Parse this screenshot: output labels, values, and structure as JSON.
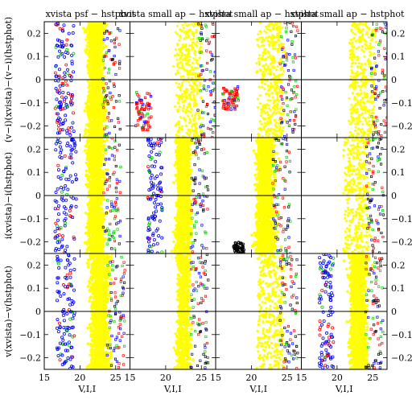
{
  "chart_data": {
    "type": "scatter",
    "layout": {
      "rows": 3,
      "cols": 4
    },
    "xlim": [
      15,
      27
    ],
    "ylim": [
      -0.25,
      0.25
    ],
    "x_ticks": [
      15,
      20,
      25
    ],
    "y_ticks": [
      -0.2,
      -0.1,
      0,
      0.1,
      0.2
    ],
    "y_tick_labels": [
      "−0.2",
      "−0.1",
      "0",
      "0.1",
      "0.2"
    ],
    "xlabel": "V,I,I",
    "row_ylabels": [
      "(v−i)(xvista)−(v−i)(hstphot)",
      "i(xvista)−i(hstphot)",
      "v(xvista)−v(hstphot)"
    ],
    "column_titles": [
      "xvista psf − hstphot",
      "xvista small ap − hstphot",
      "xvista small ap − hstphot",
      "xvista small ap − hstphot"
    ],
    "right_tick_labels_visible": [
      "0.2",
      "0.1",
      "0",
      "−0.1"
    ],
    "zero_line": 0,
    "series_colors": {
      "main": "#ffff00",
      "blue": "#0000ff",
      "red": "#ff0000",
      "green": "#00cc00",
      "black": "#000000"
    },
    "panels": [
      {
        "row": 0,
        "col": 0,
        "ridge": 22.2,
        "width": 1.6,
        "blue": [
          16.5,
          19.2
        ],
        "red": [
          16.5,
          18.5
        ]
      },
      {
        "row": 0,
        "col": 1,
        "ridge": 23.5,
        "width": 1.2,
        "sparse": true,
        "redClump": [
          15.8,
          18.0,
          -0.22,
          -0.05
        ]
      },
      {
        "row": 0,
        "col": 2,
        "ridge": 23.0,
        "width": 1.2,
        "sparse": true,
        "redClump": [
          16.0,
          18.2,
          -0.13,
          -0.03
        ]
      },
      {
        "row": 0,
        "col": 3,
        "ridge": 23.8,
        "width": 1.0,
        "sparse": true
      },
      {
        "row": 1,
        "col": 0,
        "ridge": 22.2,
        "width": 1.6,
        "blue": [
          16.5,
          19.5
        ]
      },
      {
        "row": 1,
        "col": 1,
        "ridge": 22.5,
        "width": 1.4,
        "blue": [
          17.5,
          19.5
        ]
      },
      {
        "row": 1,
        "col": 2,
        "ridge": 22.0,
        "width": 1.8,
        "blackClump": [
          17.5,
          19.0,
          -0.25,
          -0.2
        ]
      },
      {
        "row": 1,
        "col": 3,
        "ridge": 23.0,
        "width": 1.0,
        "sparse": true
      },
      {
        "row": 2,
        "col": 0,
        "ridge": 22.8,
        "width": 1.8,
        "blue": [
          16.8,
          19.3
        ]
      },
      {
        "row": 2,
        "col": 1,
        "ridge": 22.5,
        "width": 1.3,
        "semi": true
      },
      {
        "row": 2,
        "col": 2,
        "ridge": 23.0,
        "width": 1.3,
        "sparse": true
      },
      {
        "row": 2,
        "col": 3,
        "ridge": 23.0,
        "width": 1.6,
        "blue": [
          17.5,
          19.5
        ]
      }
    ]
  }
}
